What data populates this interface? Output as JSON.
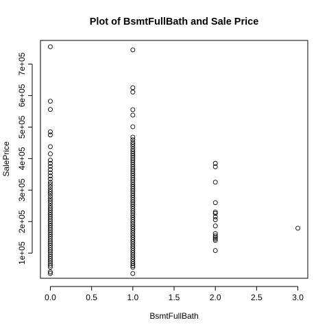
{
  "chart_data": {
    "type": "scatter",
    "title": "Plot of BsmtFullBath and Sale Price",
    "xlabel": "BsmtFullBath",
    "ylabel": "SalePrice",
    "xlim": [
      -0.12,
      3.12
    ],
    "ylim": [
      20000,
      775000
    ],
    "x_ticks": [
      0,
      0.5,
      1,
      1.5,
      2,
      2.5,
      3
    ],
    "x_tick_labels": [
      "0.0",
      "0.5",
      "1.0",
      "1.5",
      "2.0",
      "2.5",
      "3.0"
    ],
    "y_ticks": [
      100000,
      200000,
      300000,
      400000,
      500000,
      600000,
      700000
    ],
    "y_tick_labels": [
      "1e+05",
      "2e+05",
      "3e+05",
      "4e+05",
      "5e+05",
      "6e+05",
      "7e+05"
    ],
    "grid": false,
    "legend": "none",
    "points": [
      {
        "x": 0,
        "y": 755000
      },
      {
        "x": 0,
        "y": 582000
      },
      {
        "x": 0,
        "y": 556000
      },
      {
        "x": 0,
        "y": 485000
      },
      {
        "x": 0,
        "y": 475000
      },
      {
        "x": 0,
        "y": 438000
      },
      {
        "x": 0,
        "y": 415000
      },
      {
        "x": 0,
        "y": 395000
      },
      {
        "x": 0,
        "y": 385000
      },
      {
        "x": 0,
        "y": 375000
      },
      {
        "x": 0,
        "y": 365000
      },
      {
        "x": 0,
        "y": 355000
      },
      {
        "x": 0,
        "y": 345000
      },
      {
        "x": 0,
        "y": 335000
      },
      {
        "x": 0,
        "y": 325000
      },
      {
        "x": 0,
        "y": 318000
      },
      {
        "x": 0,
        "y": 310000
      },
      {
        "x": 0,
        "y": 302000
      },
      {
        "x": 0,
        "y": 295000
      },
      {
        "x": 0,
        "y": 288000
      },
      {
        "x": 0,
        "y": 280000
      },
      {
        "x": 0,
        "y": 272000
      },
      {
        "x": 0,
        "y": 265000
      },
      {
        "x": 0,
        "y": 258000
      },
      {
        "x": 0,
        "y": 250000
      },
      {
        "x": 0,
        "y": 243000
      },
      {
        "x": 0,
        "y": 236000
      },
      {
        "x": 0,
        "y": 229000
      },
      {
        "x": 0,
        "y": 222000
      },
      {
        "x": 0,
        "y": 215000
      },
      {
        "x": 0,
        "y": 208000
      },
      {
        "x": 0,
        "y": 201000
      },
      {
        "x": 0,
        "y": 194000
      },
      {
        "x": 0,
        "y": 187000
      },
      {
        "x": 0,
        "y": 180000
      },
      {
        "x": 0,
        "y": 173000
      },
      {
        "x": 0,
        "y": 166000
      },
      {
        "x": 0,
        "y": 159000
      },
      {
        "x": 0,
        "y": 152000
      },
      {
        "x": 0,
        "y": 145000
      },
      {
        "x": 0,
        "y": 138000
      },
      {
        "x": 0,
        "y": 131000
      },
      {
        "x": 0,
        "y": 124000
      },
      {
        "x": 0,
        "y": 117000
      },
      {
        "x": 0,
        "y": 110000
      },
      {
        "x": 0,
        "y": 103000
      },
      {
        "x": 0,
        "y": 96000
      },
      {
        "x": 0,
        "y": 89000
      },
      {
        "x": 0,
        "y": 82000
      },
      {
        "x": 0,
        "y": 75000
      },
      {
        "x": 0,
        "y": 68000
      },
      {
        "x": 0,
        "y": 61000
      },
      {
        "x": 0,
        "y": 55000
      },
      {
        "x": 0,
        "y": 40000
      },
      {
        "x": 0,
        "y": 35000
      },
      {
        "x": 1,
        "y": 745000
      },
      {
        "x": 1,
        "y": 625000
      },
      {
        "x": 1,
        "y": 611000
      },
      {
        "x": 1,
        "y": 555000
      },
      {
        "x": 1,
        "y": 538000
      },
      {
        "x": 1,
        "y": 501000
      },
      {
        "x": 1,
        "y": 468000
      },
      {
        "x": 1,
        "y": 460000
      },
      {
        "x": 1,
        "y": 452000
      },
      {
        "x": 1,
        "y": 445000
      },
      {
        "x": 1,
        "y": 438000
      },
      {
        "x": 1,
        "y": 430000
      },
      {
        "x": 1,
        "y": 423000
      },
      {
        "x": 1,
        "y": 416000
      },
      {
        "x": 1,
        "y": 409000
      },
      {
        "x": 1,
        "y": 402000
      },
      {
        "x": 1,
        "y": 395000
      },
      {
        "x": 1,
        "y": 388000
      },
      {
        "x": 1,
        "y": 381000
      },
      {
        "x": 1,
        "y": 374000
      },
      {
        "x": 1,
        "y": 367000
      },
      {
        "x": 1,
        "y": 360000
      },
      {
        "x": 1,
        "y": 353000
      },
      {
        "x": 1,
        "y": 346000
      },
      {
        "x": 1,
        "y": 339000
      },
      {
        "x": 1,
        "y": 332000
      },
      {
        "x": 1,
        "y": 325000
      },
      {
        "x": 1,
        "y": 318000
      },
      {
        "x": 1,
        "y": 311000
      },
      {
        "x": 1,
        "y": 304000
      },
      {
        "x": 1,
        "y": 297000
      },
      {
        "x": 1,
        "y": 290000
      },
      {
        "x": 1,
        "y": 283000
      },
      {
        "x": 1,
        "y": 276000
      },
      {
        "x": 1,
        "y": 269000
      },
      {
        "x": 1,
        "y": 262000
      },
      {
        "x": 1,
        "y": 255000
      },
      {
        "x": 1,
        "y": 248000
      },
      {
        "x": 1,
        "y": 241000
      },
      {
        "x": 1,
        "y": 234000
      },
      {
        "x": 1,
        "y": 227000
      },
      {
        "x": 1,
        "y": 220000
      },
      {
        "x": 1,
        "y": 213000
      },
      {
        "x": 1,
        "y": 206000
      },
      {
        "x": 1,
        "y": 199000
      },
      {
        "x": 1,
        "y": 192000
      },
      {
        "x": 1,
        "y": 185000
      },
      {
        "x": 1,
        "y": 178000
      },
      {
        "x": 1,
        "y": 171000
      },
      {
        "x": 1,
        "y": 164000
      },
      {
        "x": 1,
        "y": 157000
      },
      {
        "x": 1,
        "y": 150000
      },
      {
        "x": 1,
        "y": 143000
      },
      {
        "x": 1,
        "y": 136000
      },
      {
        "x": 1,
        "y": 129000
      },
      {
        "x": 1,
        "y": 122000
      },
      {
        "x": 1,
        "y": 115000
      },
      {
        "x": 1,
        "y": 108000
      },
      {
        "x": 1,
        "y": 101000
      },
      {
        "x": 1,
        "y": 94000
      },
      {
        "x": 1,
        "y": 87000
      },
      {
        "x": 1,
        "y": 80000
      },
      {
        "x": 1,
        "y": 73000
      },
      {
        "x": 1,
        "y": 66000
      },
      {
        "x": 1,
        "y": 60000
      },
      {
        "x": 1,
        "y": 55000
      },
      {
        "x": 1,
        "y": 35000
      },
      {
        "x": 2,
        "y": 385000
      },
      {
        "x": 2,
        "y": 374000
      },
      {
        "x": 2,
        "y": 325000
      },
      {
        "x": 2,
        "y": 260000
      },
      {
        "x": 2,
        "y": 230000
      },
      {
        "x": 2,
        "y": 226000
      },
      {
        "x": 2,
        "y": 215000
      },
      {
        "x": 2,
        "y": 206000
      },
      {
        "x": 2,
        "y": 186000
      },
      {
        "x": 2,
        "y": 162000
      },
      {
        "x": 2,
        "y": 155000
      },
      {
        "x": 2,
        "y": 150000
      },
      {
        "x": 2,
        "y": 145000
      },
      {
        "x": 2,
        "y": 140000
      },
      {
        "x": 2,
        "y": 108000
      },
      {
        "x": 3,
        "y": 179000
      }
    ]
  }
}
